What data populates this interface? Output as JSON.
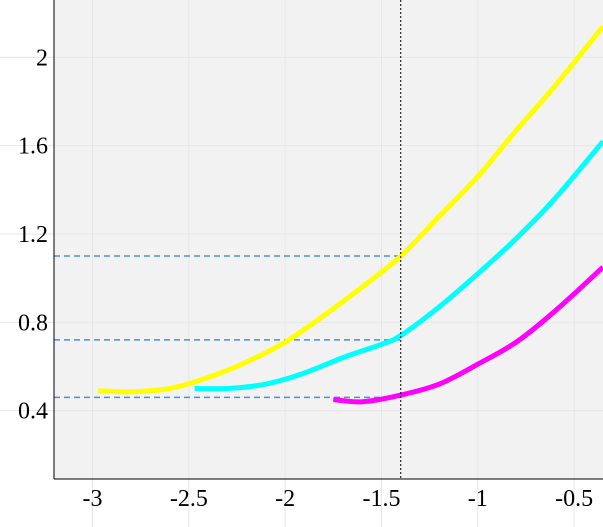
{
  "chart_data": {
    "type": "line",
    "xlim": [
      -3.2,
      -0.35
    ],
    "ylim": [
      0.09,
      2.26
    ],
    "x_ticks": [
      {
        "value": -3,
        "label": "-3"
      },
      {
        "value": -2.5,
        "label": "-2.5"
      },
      {
        "value": -2,
        "label": "-2"
      },
      {
        "value": -1.5,
        "label": "-1.5"
      },
      {
        "value": -1,
        "label": "-1"
      },
      {
        "value": -0.5,
        "label": "-0.5"
      }
    ],
    "y_ticks": [
      {
        "value": 0.4,
        "label": "0.4"
      },
      {
        "value": 0.8,
        "label": "0.8"
      },
      {
        "value": 1.2,
        "label": "1.2"
      },
      {
        "value": 1.6,
        "label": "1.6"
      },
      {
        "value": 2,
        "label": "2"
      }
    ],
    "grid": true,
    "legend": "none",
    "plot_background": "#f2f2f2",
    "series": [
      {
        "color": "#ffff00",
        "x": [
          -2.97,
          -2.8,
          -2.6,
          -2.4,
          -2.2,
          -2.0,
          -1.8,
          -1.6,
          -1.4,
          -1.2,
          -1.0,
          -0.8,
          -0.6,
          -0.35
        ],
        "y": [
          0.49,
          0.485,
          0.5,
          0.55,
          0.62,
          0.71,
          0.83,
          0.96,
          1.1,
          1.28,
          1.46,
          1.67,
          1.87,
          2.14
        ]
      },
      {
        "color": "#00ffff",
        "x": [
          -2.47,
          -2.3,
          -2.1,
          -1.9,
          -1.7,
          -1.5,
          -1.4,
          -1.2,
          -1.0,
          -0.8,
          -0.6,
          -0.35
        ],
        "y": [
          0.5,
          0.5,
          0.52,
          0.57,
          0.64,
          0.7,
          0.74,
          0.87,
          1.02,
          1.18,
          1.36,
          1.62
        ]
      },
      {
        "color": "#ff00ff",
        "x": [
          -1.75,
          -1.6,
          -1.4,
          -1.2,
          -1.0,
          -0.8,
          -0.6,
          -0.35
        ],
        "y": [
          0.45,
          0.44,
          0.47,
          0.52,
          0.61,
          0.71,
          0.85,
          1.05
        ]
      }
    ],
    "vertical_marker": {
      "x": -1.4,
      "color": "#000000",
      "style": "dotted"
    },
    "reference_lines": [
      {
        "y": 1.1,
        "x_start": -3.2,
        "x_end": -1.4,
        "color": "#4a90d9",
        "style": "dashed"
      },
      {
        "y": 0.72,
        "x_start": -3.2,
        "x_end": -1.4,
        "color": "#4a90d9",
        "style": "dashed"
      },
      {
        "y": 0.46,
        "x_start": -3.2,
        "x_end": -1.4,
        "color": "#4a90d9",
        "style": "dashed"
      }
    ]
  }
}
